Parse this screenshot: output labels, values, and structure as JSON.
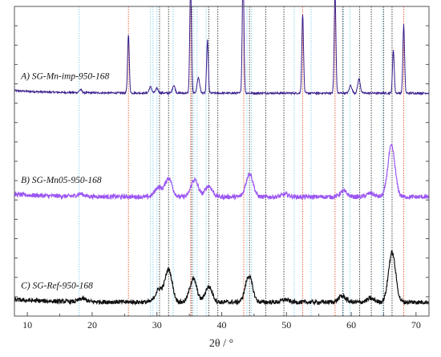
{
  "chart_data": {
    "type": "line",
    "title": "",
    "xlabel": "2θ / °",
    "ylabel": "",
    "xlim": [
      8,
      72
    ],
    "xticks": [
      10,
      20,
      30,
      40,
      50,
      60,
      70
    ],
    "grid": false,
    "legend": "none",
    "series": [
      {
        "name": "A) SG-Mn-imp-950-168",
        "color": "#3a1e8c",
        "baseline": 0.72,
        "peaks": [
          {
            "x": 18.2,
            "h": 0.01
          },
          {
            "x": 25.6,
            "h": 0.19
          },
          {
            "x": 29.0,
            "h": 0.02
          },
          {
            "x": 30.0,
            "h": 0.015
          },
          {
            "x": 32.6,
            "h": 0.025
          },
          {
            "x": 35.2,
            "h": 0.355
          },
          {
            "x": 36.4,
            "h": 0.05
          },
          {
            "x": 37.8,
            "h": 0.17
          },
          {
            "x": 43.3,
            "h": 0.39
          },
          {
            "x": 52.5,
            "h": 0.255
          },
          {
            "x": 57.5,
            "h": 0.325
          },
          {
            "x": 59.9,
            "h": 0.025
          },
          {
            "x": 61.2,
            "h": 0.045
          },
          {
            "x": 66.5,
            "h": 0.14
          },
          {
            "x": 68.1,
            "h": 0.22
          }
        ]
      },
      {
        "name": "B) SG-Mn05-950-168",
        "color": "#9b55f2",
        "baseline": 0.385,
        "peaks": [
          {
            "x": 18.2,
            "h": 0.008
          },
          {
            "x": 30.2,
            "h": 0.03
          },
          {
            "x": 31.8,
            "h": 0.06
          },
          {
            "x": 35.8,
            "h": 0.055
          },
          {
            "x": 38.0,
            "h": 0.035
          },
          {
            "x": 44.3,
            "h": 0.075
          },
          {
            "x": 49.8,
            "h": 0.008
          },
          {
            "x": 58.8,
            "h": 0.018
          },
          {
            "x": 63.0,
            "h": 0.012
          },
          {
            "x": 66.2,
            "h": 0.165
          }
        ]
      },
      {
        "name": "C) SG-Ref-950-168",
        "color": "#111111",
        "baseline": 0.045,
        "peaks": [
          {
            "x": 18.5,
            "h": 0.01
          },
          {
            "x": 30.3,
            "h": 0.04
          },
          {
            "x": 31.8,
            "h": 0.105
          },
          {
            "x": 35.6,
            "h": 0.075
          },
          {
            "x": 38.0,
            "h": 0.05
          },
          {
            "x": 44.2,
            "h": 0.085
          },
          {
            "x": 49.8,
            "h": 0.008
          },
          {
            "x": 58.6,
            "h": 0.02
          },
          {
            "x": 63.0,
            "h": 0.012
          },
          {
            "x": 66.3,
            "h": 0.16
          }
        ]
      }
    ],
    "reference_lines": [
      {
        "name": "orange-ref",
        "color": "#e0582a",
        "positions": [
          25.6,
          35.2,
          43.4,
          52.5,
          57.5,
          68.1
        ]
      },
      {
        "name": "blue-ref",
        "color": "#7fd0f0",
        "positions": [
          18.0,
          29.0,
          29.4,
          30.0,
          32.5,
          35.7,
          36.2,
          37.6,
          43.9,
          44.6,
          51.2,
          53.8,
          58.8,
          59.8,
          64.8
        ]
      },
      {
        "name": "dark-ref",
        "color": "#333333",
        "positions": [
          30.4,
          31.8,
          35.4,
          38.0,
          39.4,
          44.3,
          46.8,
          49.6,
          58.7,
          61.3,
          63.1,
          65.0,
          66.3
        ]
      }
    ]
  }
}
